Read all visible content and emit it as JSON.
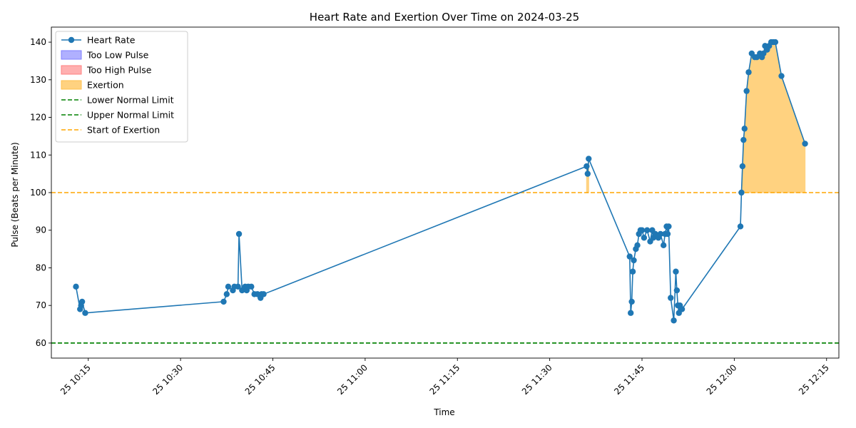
{
  "chart_data": {
    "type": "line",
    "title": "Heart Rate and Exertion Over Time on 2024-03-25",
    "xlabel": "Time",
    "ylabel": "Pulse (Beats per Minute)",
    "x_type": "datetime",
    "date": "2024-03-25",
    "xlim": [
      "10:09:00",
      "12:17:00"
    ],
    "ylim": [
      56,
      144
    ],
    "x_ticks": [
      {
        "value": "10:15",
        "label": "25 10:15"
      },
      {
        "value": "10:30",
        "label": "25 10:30"
      },
      {
        "value": "10:45",
        "label": "25 10:45"
      },
      {
        "value": "11:00",
        "label": "25 11:00"
      },
      {
        "value": "11:15",
        "label": "25 11:15"
      },
      {
        "value": "11:30",
        "label": "25 11:30"
      },
      {
        "value": "11:45",
        "label": "25 11:45"
      },
      {
        "value": "12:00",
        "label": "25 12:00"
      },
      {
        "value": "12:15",
        "label": "25 12:15"
      }
    ],
    "y_ticks": [
      60,
      70,
      80,
      90,
      100,
      110,
      120,
      130,
      140
    ],
    "grid": false,
    "legend_position": "top-left",
    "series": [
      {
        "name": "Heart Rate",
        "color": "#1f77b4",
        "marker": "circle",
        "x": [
          "10:13:00",
          "10:13:40",
          "10:13:50",
          "10:14:00",
          "10:14:30",
          "10:37:00",
          "10:37:30",
          "10:37:45",
          "10:38:30",
          "10:38:45",
          "10:39:20",
          "10:39:30",
          "10:40:00",
          "10:40:30",
          "10:40:45",
          "10:41:00",
          "10:41:30",
          "10:42:00",
          "10:42:30",
          "10:43:00",
          "10:43:10",
          "10:43:30",
          "11:36:00",
          "11:36:10",
          "11:36:20",
          "11:43:00",
          "11:43:10",
          "11:43:20",
          "11:43:30",
          "11:43:40",
          "11:44:00",
          "11:44:15",
          "11:44:30",
          "11:44:45",
          "11:45:00",
          "11:45:20",
          "11:45:50",
          "11:46:20",
          "11:46:40",
          "11:46:50",
          "11:47:10",
          "11:47:40",
          "11:48:00",
          "11:48:30",
          "11:48:45",
          "11:49:00",
          "11:49:10",
          "11:49:20",
          "11:49:40",
          "11:50:10",
          "11:50:30",
          "11:50:40",
          "11:50:50",
          "11:51:00",
          "11:51:10",
          "11:51:30",
          "12:01:00",
          "12:01:10",
          "12:01:20",
          "12:01:30",
          "12:01:40",
          "12:02:00",
          "12:02:20",
          "12:02:50",
          "12:03:20",
          "12:03:40",
          "12:04:10",
          "12:04:30",
          "12:04:45",
          "12:05:00",
          "12:05:20",
          "12:05:40",
          "12:06:00",
          "12:06:20",
          "12:06:40",
          "12:07:40",
          "12:11:30"
        ],
        "y": [
          75,
          69,
          70,
          71,
          68,
          71,
          73,
          75,
          74,
          75,
          75,
          89,
          74,
          75,
          74,
          75,
          75,
          73,
          73,
          72,
          73,
          73,
          107,
          105,
          109,
          83,
          68,
          71,
          79,
          82,
          85,
          86,
          89,
          90,
          90,
          88,
          90,
          87,
          90,
          88,
          89,
          88,
          89,
          86,
          89,
          91,
          89,
          91,
          72,
          66,
          79,
          74,
          70,
          68,
          70,
          69,
          91,
          100,
          107,
          114,
          117,
          127,
          132,
          137,
          136,
          136,
          137,
          136,
          137,
          139,
          138,
          139,
          140,
          140,
          140,
          131,
          113
        ]
      },
      {
        "name": "Too Low Pulse",
        "type": "area",
        "color": "#b0b0ff",
        "x": [],
        "y": []
      },
      {
        "name": "Too High Pulse",
        "type": "area",
        "color": "#ffb0b0",
        "x": [],
        "y": []
      },
      {
        "name": "Exertion",
        "type": "area",
        "color": "#ffd280",
        "baseline": 100,
        "x": [
          "11:36:00",
          "11:36:10",
          "11:36:20",
          "12:01:10",
          "12:01:20",
          "12:01:30",
          "12:01:40",
          "12:02:00",
          "12:02:20",
          "12:02:50",
          "12:03:20",
          "12:03:40",
          "12:04:10",
          "12:04:30",
          "12:04:45",
          "12:05:00",
          "12:05:20",
          "12:05:40",
          "12:06:00",
          "12:06:20",
          "12:06:40",
          "12:07:40",
          "12:11:30"
        ],
        "y": [
          107,
          105,
          109,
          100,
          107,
          114,
          117,
          127,
          132,
          137,
          136,
          136,
          137,
          136,
          137,
          139,
          138,
          139,
          140,
          140,
          140,
          131,
          113
        ]
      }
    ],
    "reference_lines": [
      {
        "name": "Lower Normal Limit",
        "value": 60,
        "color": "#008000",
        "style": "dashed"
      },
      {
        "name": "Upper Normal Limit",
        "value": 60,
        "color": "#008000",
        "style": "dashed"
      },
      {
        "name": "Start of Exertion",
        "value": 100,
        "color": "#ffa500",
        "style": "dashed"
      }
    ],
    "legend": [
      {
        "label": "Heart Rate",
        "kind": "line-marker",
        "color": "#1f77b4"
      },
      {
        "label": "Too Low Pulse",
        "kind": "patch",
        "color": "#b0b0ff",
        "edge": "#7f7fff"
      },
      {
        "label": "Too High Pulse",
        "kind": "patch",
        "color": "#ffb0b0",
        "edge": "#ff7f7f"
      },
      {
        "label": "Exertion",
        "kind": "patch",
        "color": "#ffd280",
        "edge": "#ffc04d"
      },
      {
        "label": "Lower Normal Limit",
        "kind": "dashed",
        "color": "#008000"
      },
      {
        "label": "Upper Normal Limit",
        "kind": "dashed",
        "color": "#008000"
      },
      {
        "label": "Start of Exertion",
        "kind": "dashed",
        "color": "#ffa500"
      }
    ]
  }
}
